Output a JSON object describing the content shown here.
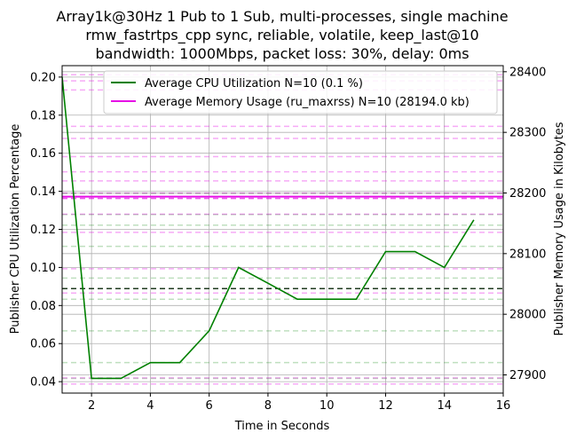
{
  "chart_data": {
    "type": "line",
    "title": [
      "Array1k@30Hz 1 Pub to 1 Sub, multi-processes, single machine",
      "rmw_fastrtps_cpp sync, reliable, volatile, keep_last@10",
      "bandwidth: 1000Mbps, packet loss: 30%, delay: 0ms"
    ],
    "xlabel": "Time in Seconds",
    "ylabel_left": "Publisher CPU Utilization Percentage",
    "ylabel_right": "Publisher Memory Usage in Kilobytes",
    "xlim": [
      1,
      16
    ],
    "ylim_left": [
      0.034,
      0.206
    ],
    "ylim_right": [
      27870,
      28410
    ],
    "x_ticks": [
      2,
      4,
      6,
      8,
      10,
      12,
      14,
      16
    ],
    "y_ticks_left": [
      0.04,
      0.06,
      0.08,
      0.1,
      0.12,
      0.14,
      0.16,
      0.18,
      0.2
    ],
    "y_ticks_left_labels": [
      "0.04",
      "0.06",
      "0.08",
      "0.10",
      "0.12",
      "0.14",
      "0.16",
      "0.18",
      "0.20"
    ],
    "y_ticks_right": [
      27900,
      28000,
      28100,
      28200,
      28300,
      28400
    ],
    "grid": true,
    "legend_position": "top-right",
    "series": [
      {
        "name": "Average CPU Utilization N=10 (0.1 %)",
        "axis": "left",
        "color": "#008000",
        "x": [
          1,
          2,
          3,
          4,
          5,
          6,
          7,
          8,
          9,
          10,
          11,
          12,
          13,
          14,
          15
        ],
        "y": [
          0.2,
          0.0417,
          0.0417,
          0.05,
          0.05,
          0.0667,
          0.1,
          0.0917,
          0.0833,
          0.0833,
          0.0833,
          0.1083,
          0.1083,
          0.1,
          0.125
        ]
      },
      {
        "name": "Average Memory Usage (ru_maxrss) N=10 (28194.0 kb)",
        "axis": "right",
        "color": "#e60ee6",
        "x": [
          1,
          16
        ],
        "y": [
          28194,
          28194
        ]
      }
    ],
    "reference_lines": {
      "cpu_mean": 0.0889,
      "cpu_bands": [
        0.0417,
        0.05,
        0.0667,
        0.0833,
        0.0944,
        0.1111,
        0.1222,
        0.1278,
        0.1389
      ],
      "memory_bands": [
        27885,
        27895,
        28035,
        28075,
        28135,
        28165,
        28200,
        28220,
        28235,
        28260,
        28290,
        28310,
        28370,
        28385,
        28395
      ]
    }
  }
}
